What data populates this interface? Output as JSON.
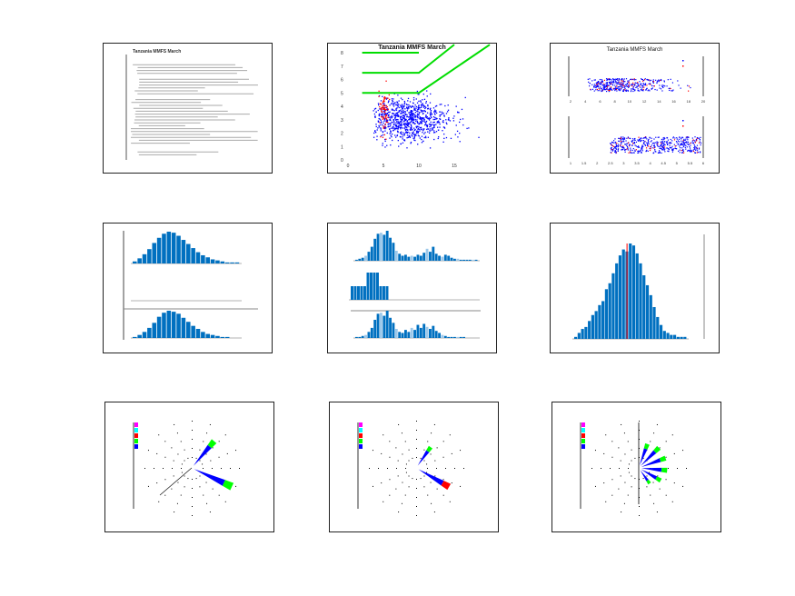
{
  "colors": {
    "scatter_main": "#0000ff",
    "scatter_alt": "#ff0000",
    "threshold": "#00dd00",
    "bar": "#0070c0",
    "bar_light": "#9cc8ea",
    "marker": "#ff0000",
    "rose": [
      "#ff00ff",
      "#00ffff",
      "#ff0000",
      "#00ff00",
      "#0000ff"
    ]
  },
  "chart_data": [
    {
      "type": "table",
      "title": "Tanzania MMFS March"
    },
    {
      "type": "scatter",
      "title": "Tanzania MMFS March",
      "xlim": [
        0,
        20
      ],
      "ylim": [
        0,
        8
      ],
      "xticks": [
        "0",
        "5",
        "10",
        "15"
      ],
      "yticks": [
        "0",
        "1",
        "2",
        "3",
        "4",
        "5",
        "6",
        "7",
        "8"
      ],
      "clusters": [
        {
          "name": "main",
          "color": "blue",
          "cx": 8.5,
          "cy": 3.0,
          "sx": 3.0,
          "sy": 0.8,
          "n": 900
        },
        {
          "name": "alt",
          "color": "red",
          "cx": 5.0,
          "cy": 3.8,
          "sx": 0.5,
          "sy": 0.9,
          "n": 70
        }
      ],
      "thresholds": [
        [
          [
            2,
            8
          ],
          [
            10,
            8
          ]
        ],
        [
          [
            2,
            6.5
          ],
          [
            10,
            6.5
          ],
          [
            15,
            9
          ]
        ],
        [
          [
            2,
            5
          ],
          [
            10,
            5
          ],
          [
            20,
            12
          ]
        ]
      ]
    },
    {
      "type": "scatter",
      "title": "Tanzania MMFS March",
      "subplots": 2,
      "xticks_top": [
        "2",
        "4",
        "6",
        "8",
        "10",
        "12",
        "14",
        "16",
        "18",
        "20"
      ],
      "xticks_bottom": [
        "1",
        "1.5",
        "2",
        "2.5",
        "3",
        "3.5",
        "4",
        "4.5",
        "5",
        "5.5",
        "6"
      ]
    },
    {
      "type": "bar",
      "subplots": 3,
      "values_top": [
        2,
        5,
        9,
        14,
        20,
        25,
        29,
        31,
        30,
        27,
        23,
        19,
        15,
        11,
        8,
        6,
        4,
        3,
        2,
        1,
        1,
        1
      ],
      "values_mid": [
        0,
        0,
        0,
        0,
        0,
        0,
        0,
        0,
        0,
        0,
        0,
        0,
        0,
        0,
        0,
        0,
        0,
        0,
        0,
        0,
        0,
        0
      ],
      "values_bottom": [
        1,
        3,
        6,
        10,
        15,
        21,
        25,
        27,
        26,
        24,
        20,
        16,
        12,
        9,
        6,
        4,
        3,
        2,
        1,
        1,
        0,
        0
      ]
    },
    {
      "type": "bar",
      "subplots": 3,
      "values_top": [
        1,
        2,
        3,
        5,
        9,
        14,
        22,
        27,
        28,
        26,
        30,
        23,
        18,
        10,
        7,
        5,
        6,
        4,
        5,
        4,
        6,
        5,
        8,
        12,
        9,
        14,
        7,
        5,
        4,
        6,
        5,
        3,
        2,
        2,
        1,
        1,
        1,
        1,
        1,
        1
      ],
      "values_mid": [
        1,
        1,
        1,
        1,
        1,
        2,
        2,
        2,
        2,
        1,
        1,
        1,
        0,
        0,
        0,
        0,
        0,
        0,
        0,
        0,
        0,
        0,
        0,
        0,
        0,
        0,
        0,
        0,
        0,
        0,
        0,
        0,
        0,
        0,
        0,
        0,
        0,
        0,
        0,
        0
      ],
      "values_bottom": [
        1,
        1,
        2,
        3,
        6,
        10,
        18,
        24,
        25,
        22,
        27,
        20,
        15,
        9,
        6,
        5,
        8,
        6,
        10,
        8,
        13,
        10,
        14,
        11,
        9,
        12,
        7,
        5,
        3,
        2,
        1,
        1,
        1,
        1,
        1,
        1,
        0,
        0,
        0,
        0
      ]
    },
    {
      "type": "bar",
      "values": [
        1,
        3,
        5,
        6,
        9,
        12,
        14,
        17,
        19,
        25,
        28,
        33,
        38,
        42,
        45,
        44,
        48,
        47,
        43,
        38,
        32,
        27,
        22,
        16,
        11,
        7,
        4,
        3,
        2,
        2,
        1,
        1,
        1
      ],
      "marker_index": 16
    },
    {
      "type": "pie",
      "subtype": "wind-rose",
      "petals": [
        {
          "dir": 40,
          "len": 0.55
        },
        {
          "dir": 115,
          "len": 0.7
        }
      ]
    },
    {
      "type": "pie",
      "subtype": "wind-rose",
      "petals": [
        {
          "dir": 35,
          "len": 0.4
        },
        {
          "dir": 120,
          "len": 0.6
        }
      ]
    },
    {
      "type": "pie",
      "subtype": "wind-rose",
      "petals": [
        {
          "dir": 20,
          "len": 0.4
        },
        {
          "dir": 45,
          "len": 0.45
        },
        {
          "dir": 70,
          "len": 0.45
        },
        {
          "dir": 95,
          "len": 0.45
        },
        {
          "dir": 120,
          "len": 0.4
        },
        {
          "dir": 145,
          "len": 0.3
        }
      ]
    }
  ]
}
